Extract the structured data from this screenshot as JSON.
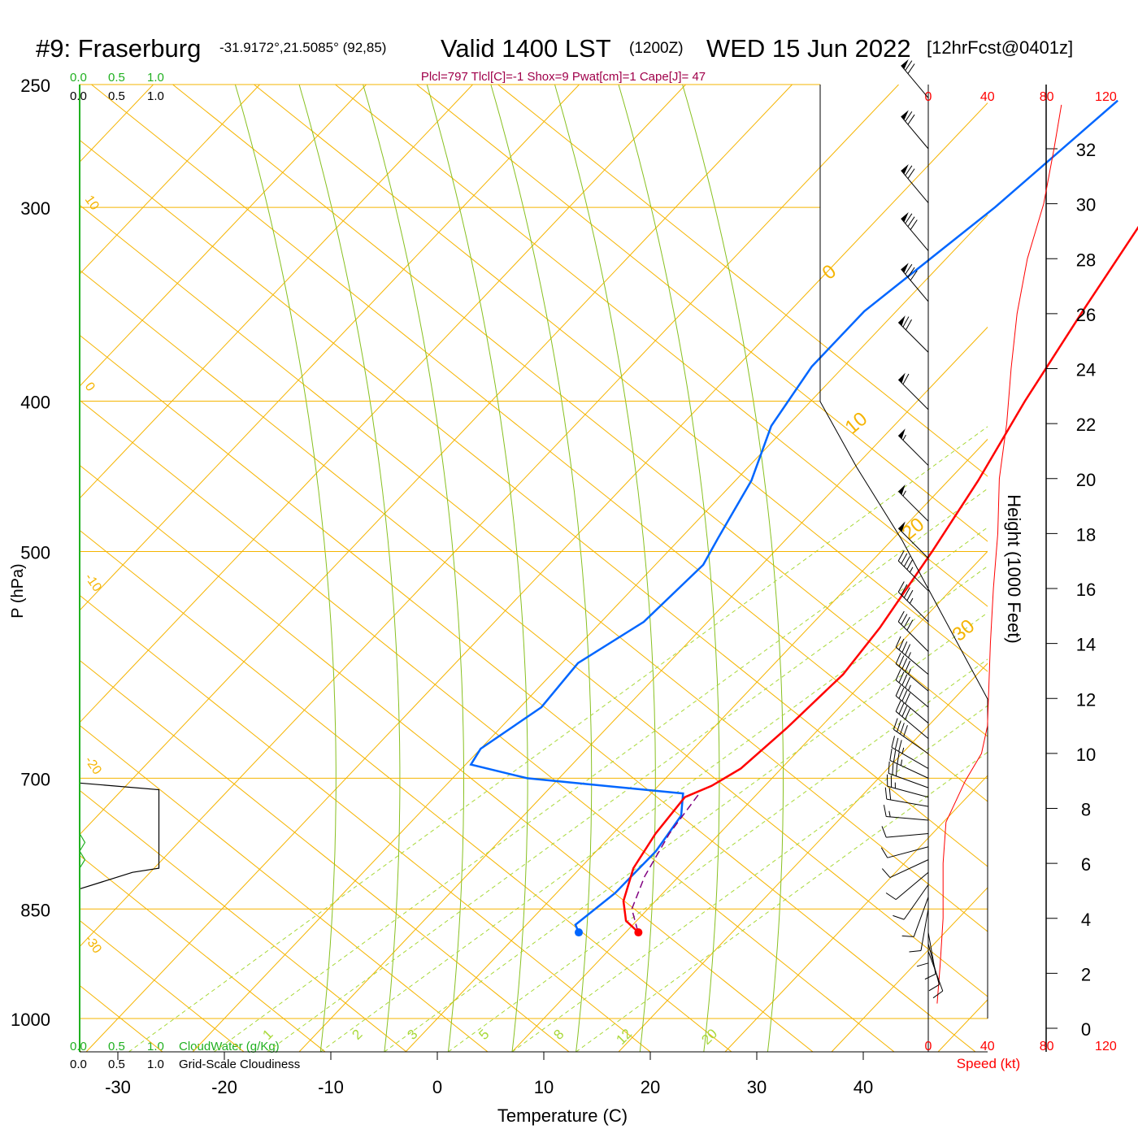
{
  "header": {
    "station": "#9: Fraserburg",
    "coords": "-31.9172°,21.5085° (92,85)",
    "valid": "Valid 1400 LST",
    "zulu": "(1200Z)",
    "date": "WED 15 Jun 2022",
    "forecast": "[12hrFcst@0401z]",
    "indices": "Plcl=797 Tlcl[C]=-1 Shox=9 Pwat[cm]=1 Cape[J]= 47"
  },
  "labels": {
    "ylabel": "P (hPa)",
    "xlabel": "Temperature (C)",
    "height_label": "Height (1000 Feet)",
    "speed_label": "Speed (kt)",
    "cloudwater_label": "CloudWater (g/Kg)",
    "cloudiness_label": "Grid-Scale Cloudiness",
    "scale_ticks": [
      "0.0",
      "0.5",
      "1.0"
    ]
  },
  "colors": {
    "temperature": "#ff0000",
    "dewpoint": "#0066ff",
    "parcel": "#800080",
    "isobar_isotherm": "#f5b400",
    "dry_adiabat": "#88c020",
    "mixing_ratio": "#a8d838",
    "cloudwater": "#20b020",
    "wind_speed": "#ff0000",
    "indices": "#a0004a"
  },
  "chart_data": {
    "type": "skew-t",
    "pressure_ticks": [
      250,
      300,
      400,
      500,
      700,
      850,
      1000
    ],
    "temperature_ticks": [
      -30,
      -20,
      -10,
      0,
      10,
      20,
      30,
      40
    ],
    "height_ticks_kft": [
      0,
      2,
      4,
      6,
      8,
      10,
      12,
      14,
      16,
      18,
      20,
      22,
      24,
      26,
      28,
      30,
      32
    ],
    "speed_ticks_kt": [
      0,
      40,
      80,
      120
    ],
    "isotherm_labels": [
      "10",
      "0",
      "-10",
      "-20",
      "-30"
    ],
    "isotherm_labels_right": [
      "0",
      "10",
      "20",
      "30"
    ],
    "mixing_ratio_labels": [
      "1",
      "2",
      "3",
      "5",
      "8",
      "12",
      "20"
    ],
    "temperature": [
      [
        880,
        11.2
      ],
      [
        865,
        9.0
      ],
      [
        840,
        7.0
      ],
      [
        800,
        5.0
      ],
      [
        760,
        4.0
      ],
      [
        720,
        3.5
      ],
      [
        708,
        5.0
      ],
      [
        690,
        6.2
      ],
      [
        650,
        6.9
      ],
      [
        600,
        7.4
      ],
      [
        560,
        6.7
      ],
      [
        500,
        4.8
      ],
      [
        450,
        2.8
      ],
      [
        400,
        0.1
      ],
      [
        350,
        -2.5
      ],
      [
        300,
        -5.3
      ],
      [
        256,
        -6.0
      ]
    ],
    "dewpoint": [
      [
        880,
        5.6
      ],
      [
        870,
        4.6
      ],
      [
        830,
        5.5
      ],
      [
        780,
        5.6
      ],
      [
        740,
        4.8
      ],
      [
        716,
        3.0
      ],
      [
        710,
        -3.0
      ],
      [
        700,
        -13.0
      ],
      [
        686,
        -19.5
      ],
      [
        670,
        -20.0
      ],
      [
        630,
        -18.0
      ],
      [
        590,
        -18.5
      ],
      [
        555,
        -16.0
      ],
      [
        510,
        -15.5
      ],
      [
        490,
        -16.5
      ],
      [
        450,
        -18.5
      ],
      [
        415,
        -21.5
      ],
      [
        380,
        -23.0
      ],
      [
        350,
        -23.0
      ],
      [
        300,
        -20.0
      ],
      [
        256,
        -18.0
      ]
    ],
    "parcel": [
      [
        878,
        11.0
      ],
      [
        850,
        8.5
      ],
      [
        810,
        6.8
      ],
      [
        760,
        5.3
      ],
      [
        715,
        4.5
      ]
    ],
    "surface_temp_c": 11.2,
    "surface_dewpoint_c": 5.6,
    "wind_speed_profile": [
      [
        0.9,
        6
      ],
      [
        2.3,
        8
      ],
      [
        4.0,
        10
      ],
      [
        6.0,
        10
      ],
      [
        7.5,
        12
      ],
      [
        9.0,
        25
      ],
      [
        10.0,
        36
      ],
      [
        11.0,
        40
      ],
      [
        14.0,
        42
      ],
      [
        16.0,
        44
      ],
      [
        18.0,
        47
      ],
      [
        20.0,
        48
      ],
      [
        22.0,
        53
      ],
      [
        24.0,
        56
      ],
      [
        26.0,
        60
      ],
      [
        28.0,
        67
      ],
      [
        30.0,
        78
      ],
      [
        32.0,
        85
      ],
      [
        33.6,
        90
      ]
    ],
    "wind_barbs": [
      {
        "p": 255,
        "dir": 320,
        "spd": 70
      },
      {
        "p": 275,
        "dir": 320,
        "spd": 70
      },
      {
        "p": 298,
        "dir": 320,
        "spd": 70
      },
      {
        "p": 320,
        "dir": 320,
        "spd": 80
      },
      {
        "p": 345,
        "dir": 320,
        "spd": 80
      },
      {
        "p": 372,
        "dir": 315,
        "spd": 70
      },
      {
        "p": 405,
        "dir": 315,
        "spd": 60
      },
      {
        "p": 440,
        "dir": 315,
        "spd": 55
      },
      {
        "p": 478,
        "dir": 315,
        "spd": 55
      },
      {
        "p": 505,
        "dir": 315,
        "spd": 50
      },
      {
        "p": 530,
        "dir": 315,
        "spd": 45
      },
      {
        "p": 555,
        "dir": 315,
        "spd": 45
      },
      {
        "p": 580,
        "dir": 315,
        "spd": 40
      },
      {
        "p": 600,
        "dir": 310,
        "spd": 45
      },
      {
        "p": 615,
        "dir": 310,
        "spd": 45
      },
      {
        "p": 630,
        "dir": 310,
        "spd": 45
      },
      {
        "p": 645,
        "dir": 310,
        "spd": 40
      },
      {
        "p": 660,
        "dir": 310,
        "spd": 40
      },
      {
        "p": 675,
        "dir": 305,
        "spd": 40
      },
      {
        "p": 690,
        "dir": 300,
        "spd": 35
      },
      {
        "p": 700,
        "dir": 295,
        "spd": 35
      },
      {
        "p": 710,
        "dir": 290,
        "spd": 30
      },
      {
        "p": 720,
        "dir": 285,
        "spd": 25
      },
      {
        "p": 730,
        "dir": 280,
        "spd": 20
      },
      {
        "p": 745,
        "dir": 275,
        "spd": 15
      },
      {
        "p": 760,
        "dir": 265,
        "spd": 10
      },
      {
        "p": 775,
        "dir": 255,
        "spd": 10
      },
      {
        "p": 790,
        "dir": 245,
        "spd": 10
      },
      {
        "p": 805,
        "dir": 230,
        "spd": 10
      },
      {
        "p": 820,
        "dir": 215,
        "spd": 10
      },
      {
        "p": 835,
        "dir": 200,
        "spd": 10
      },
      {
        "p": 850,
        "dir": 190,
        "spd": 10
      },
      {
        "p": 865,
        "dir": 180,
        "spd": 10
      },
      {
        "p": 880,
        "dir": 170,
        "spd": 10
      },
      {
        "p": 895,
        "dir": 165,
        "spd": 10
      },
      {
        "p": 905,
        "dir": 160,
        "spd": 10
      }
    ],
    "cloudiness": [
      [
        705,
        0.0
      ],
      [
        712,
        0.75
      ],
      [
        800,
        0.75
      ],
      [
        805,
        0.5
      ],
      [
        825,
        0.0
      ]
    ],
    "cloudwater": [
      [
        760,
        0.0
      ],
      [
        770,
        0.05
      ],
      [
        780,
        0.0
      ],
      [
        790,
        0.05
      ],
      [
        800,
        0.0
      ]
    ]
  }
}
